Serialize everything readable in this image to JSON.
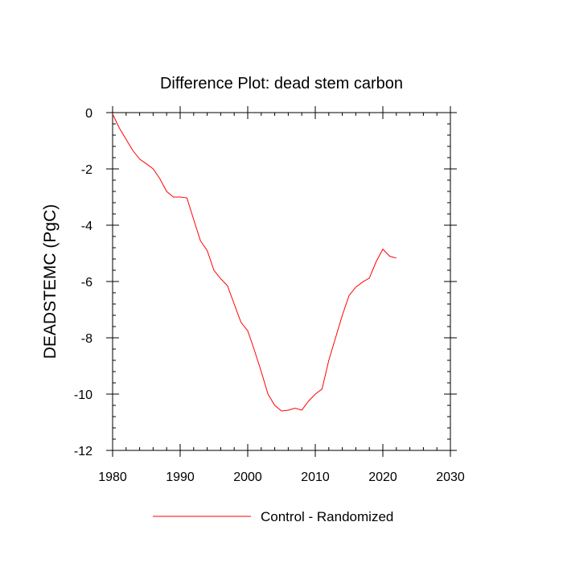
{
  "chart_data": {
    "type": "line",
    "title": "Difference Plot: dead stem carbon",
    "xlabel": "",
    "ylabel": "DEADSTEMC  (PgC)",
    "xlim": [
      1980,
      2030
    ],
    "ylim": [
      -12,
      0
    ],
    "x_ticks": [
      1980,
      1990,
      2000,
      2010,
      2020,
      2030
    ],
    "y_ticks": [
      0,
      -2,
      -4,
      -6,
      -8,
      -10,
      -12
    ],
    "x_tick_labels": [
      "1980",
      "1990",
      "2000",
      "2010",
      "2020",
      "2030"
    ],
    "y_tick_labels": [
      "0",
      "-2",
      "-4",
      "-6",
      "-8",
      "-10",
      "-12"
    ],
    "legend_position": "bottom-center",
    "series": [
      {
        "name": "Control - Randomized",
        "color": "#ff0000",
        "x": [
          1980,
          1981,
          1982,
          1983,
          1984,
          1985,
          1986,
          1987,
          1988,
          1989,
          1990,
          1991,
          1992,
          1993,
          1994,
          1995,
          1996,
          1997,
          1998,
          1999,
          2000,
          2001,
          2002,
          2003,
          2004,
          2005,
          2006,
          2007,
          2008,
          2009,
          2010,
          2011,
          2012,
          2013,
          2014,
          2015,
          2016,
          2017,
          2018,
          2019,
          2020,
          2021,
          2022
        ],
        "y": [
          -0.05,
          -0.55,
          -0.95,
          -1.35,
          -1.65,
          -1.82,
          -2.0,
          -2.35,
          -2.8,
          -3.0,
          -3.0,
          -3.03,
          -3.8,
          -4.55,
          -4.9,
          -5.6,
          -5.9,
          -6.15,
          -6.8,
          -7.45,
          -7.75,
          -8.45,
          -9.2,
          -10.0,
          -10.4,
          -10.6,
          -10.57,
          -10.5,
          -10.57,
          -10.25,
          -10.0,
          -9.82,
          -8.8,
          -8.0,
          -7.2,
          -6.5,
          -6.2,
          -6.02,
          -5.88,
          -5.3,
          -4.85,
          -5.1,
          -5.17
        ]
      }
    ]
  }
}
